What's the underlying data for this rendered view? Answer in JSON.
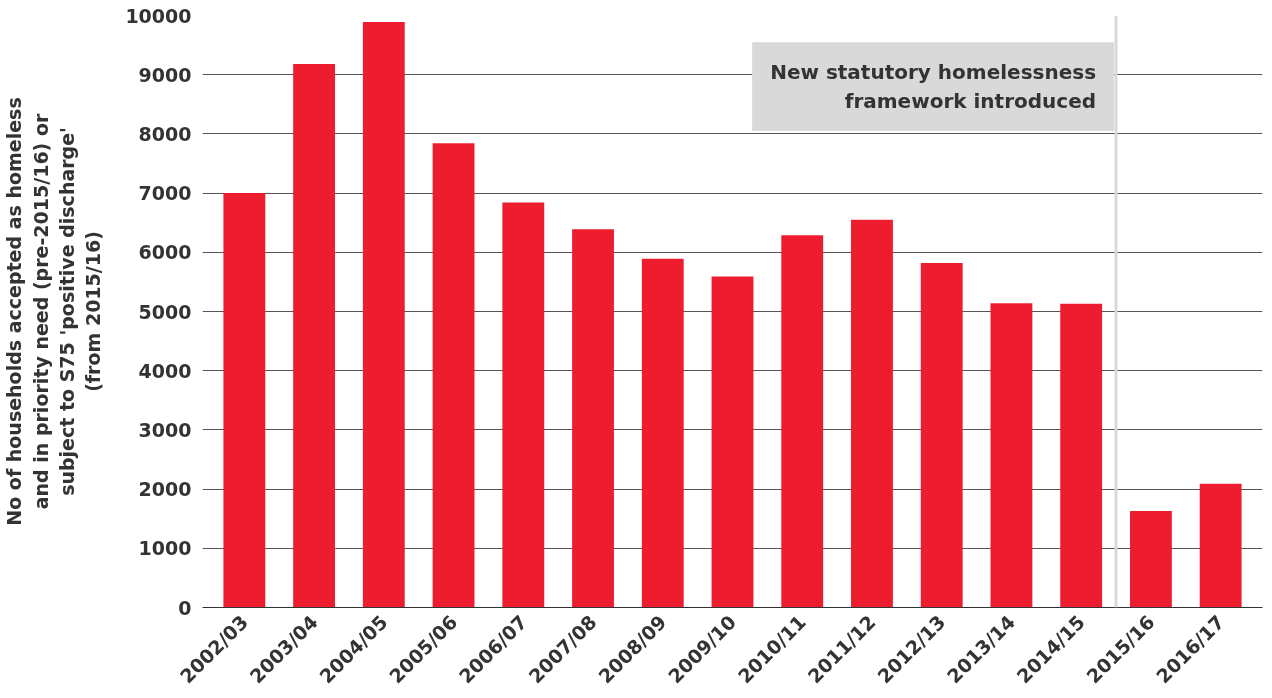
{
  "chart_data": {
    "type": "bar",
    "ylabel": "No of households accepted as homeless and in priority need (pre-2015/16) or subject to S75 'positive discharge' (from 2015/16)",
    "categories": [
      "2002/03",
      "2003/04",
      "2004/05",
      "2005/06",
      "2006/07",
      "2007/08",
      "2008/09",
      "2009/10",
      "2010/11",
      "2011/12",
      "2012/13",
      "2013/14",
      "2014/15",
      "2015/16",
      "2016/17"
    ],
    "values": [
      7000,
      9180,
      9890,
      7840,
      6840,
      6390,
      5890,
      5590,
      6290,
      6550,
      5820,
      5140,
      5130,
      1630,
      2090
    ],
    "color": "#ed1c2e",
    "ylim": [
      0,
      10000
    ],
    "yticks": [
      0,
      1000,
      2000,
      3000,
      4000,
      5000,
      6000,
      7000,
      8000,
      9000,
      10000
    ],
    "grid": "y",
    "ref_lines": [
      {
        "axis": "x",
        "value": "2015/16",
        "label": "New statutory homelessness framework introduced",
        "color": "#d9d9d9"
      }
    ]
  }
}
